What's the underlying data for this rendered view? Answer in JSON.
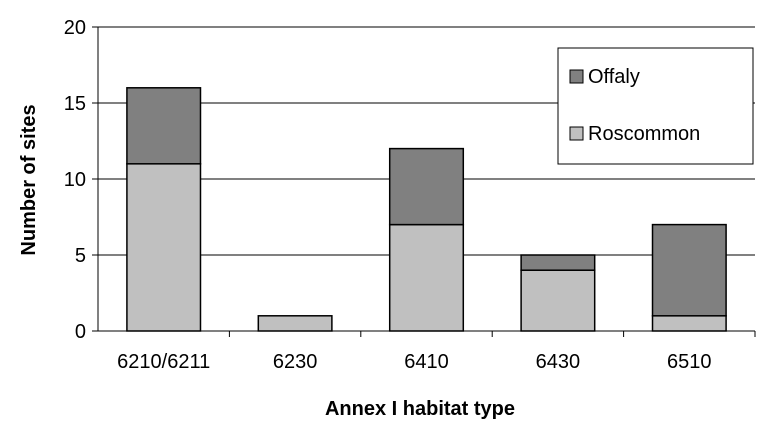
{
  "chart_data": {
    "type": "bar",
    "stacked": true,
    "title": "",
    "xlabel": "Annex I habitat type",
    "ylabel": "Number of sites",
    "categories": [
      "6210/6211",
      "6230",
      "6410",
      "6430",
      "6510"
    ],
    "series": [
      {
        "name": "Roscommon",
        "values": [
          11,
          1,
          7,
          4,
          1
        ],
        "color": "#c0c0c0"
      },
      {
        "name": "Offaly",
        "values": [
          5,
          0,
          5,
          1,
          6
        ],
        "color": "#808080"
      }
    ],
    "ylim": [
      0,
      20
    ],
    "yticks": [
      0,
      5,
      10,
      15,
      20
    ],
    "grid": true,
    "legend": {
      "position": "top-right",
      "order": [
        "Offaly",
        "Roscommon"
      ]
    }
  }
}
